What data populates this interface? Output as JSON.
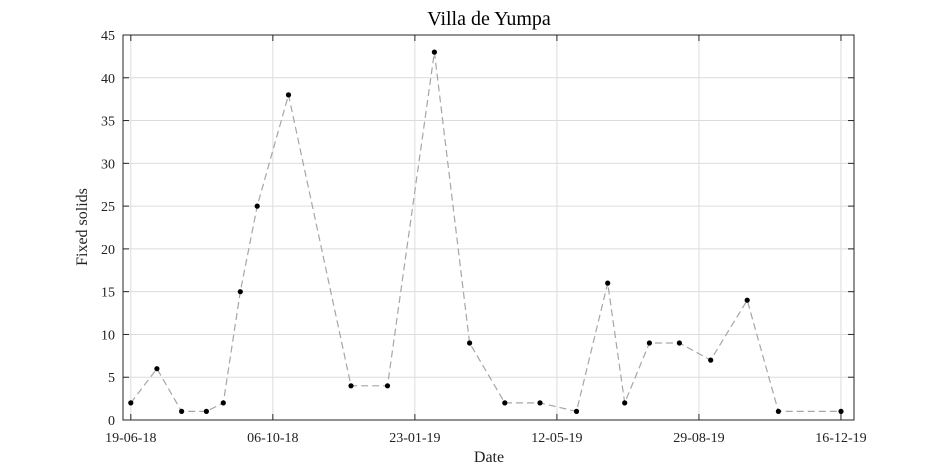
{
  "chart_data": {
    "type": "line",
    "title": "Villa de Yumpa",
    "xlabel": "Date",
    "ylabel": "Fixed solids",
    "ylim": [
      0,
      45
    ],
    "yticks": [
      0,
      5,
      10,
      15,
      20,
      25,
      30,
      35,
      40,
      45
    ],
    "xlim": [
      "2018-06-13",
      "2019-12-26"
    ],
    "xticks": [
      {
        "date": "2018-06-19",
        "label": "19-06-18"
      },
      {
        "date": "2018-10-06",
        "label": "06-10-18"
      },
      {
        "date": "2019-01-23",
        "label": "23-01-19"
      },
      {
        "date": "2019-05-12",
        "label": "12-05-19"
      },
      {
        "date": "2019-08-29",
        "label": "29-08-19"
      },
      {
        "date": "2019-12-16",
        "label": "16-12-19"
      }
    ],
    "grid": true,
    "series": [
      {
        "line_style": "dashed",
        "line_color": "#a6a6a6",
        "marker_color": "#000000",
        "points": [
          {
            "x": "2018-06-19",
            "y": 2
          },
          {
            "x": "2018-07-09",
            "y": 6
          },
          {
            "x": "2018-07-28",
            "y": 1
          },
          {
            "x": "2018-08-16",
            "y": 1
          },
          {
            "x": "2018-08-29",
            "y": 2
          },
          {
            "x": "2018-09-11",
            "y": 15
          },
          {
            "x": "2018-09-24",
            "y": 25
          },
          {
            "x": "2018-10-18",
            "y": 38
          },
          {
            "x": "2018-12-05",
            "y": 4
          },
          {
            "x": "2019-01-02",
            "y": 4
          },
          {
            "x": "2019-02-07",
            "y": 43
          },
          {
            "x": "2019-03-06",
            "y": 9
          },
          {
            "x": "2019-04-02",
            "y": 2
          },
          {
            "x": "2019-04-29",
            "y": 2
          },
          {
            "x": "2019-05-27",
            "y": 1
          },
          {
            "x": "2019-06-20",
            "y": 16
          },
          {
            "x": "2019-07-03",
            "y": 2
          },
          {
            "x": "2019-07-22",
            "y": 9
          },
          {
            "x": "2019-08-14",
            "y": 9
          },
          {
            "x": "2019-09-07",
            "y": 7
          },
          {
            "x": "2019-10-05",
            "y": 14
          },
          {
            "x": "2019-10-29",
            "y": 1
          },
          {
            "x": "2019-12-16",
            "y": 1
          }
        ]
      }
    ]
  }
}
